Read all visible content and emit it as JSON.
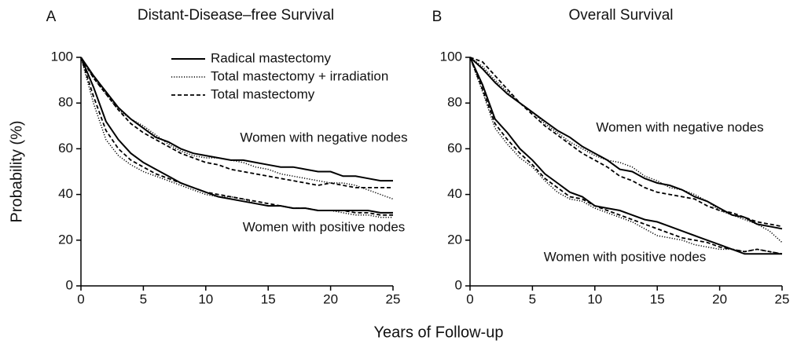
{
  "xlabel": "Years of Follow-up",
  "chart_data": [
    {
      "type": "line",
      "panel": "A",
      "title": "Distant-Disease–free Survival",
      "ylabel": "Probability (%)",
      "xlim": [
        0,
        25
      ],
      "ylim": [
        0,
        100
      ],
      "xticks": [
        0,
        5,
        10,
        15,
        20,
        25
      ],
      "yticks": [
        0,
        20,
        40,
        60,
        80,
        100
      ],
      "legend": [
        {
          "name": "Radical mastectomy",
          "style": "solid"
        },
        {
          "name": "Total mastectomy + irradiation",
          "style": "dotted"
        },
        {
          "name": "Total mastectomy",
          "style": "dashed"
        }
      ],
      "annotations": [
        "Women with negative nodes",
        "Women with positive nodes"
      ],
      "x": [
        0,
        1,
        2,
        3,
        4,
        5,
        6,
        7,
        8,
        9,
        10,
        11,
        12,
        13,
        14,
        15,
        16,
        17,
        18,
        19,
        20,
        21,
        22,
        23,
        24,
        25
      ],
      "series": [
        {
          "style": "solid",
          "color": "#000000",
          "values": [
            100,
            92,
            85,
            78,
            73,
            69,
            65,
            63,
            60,
            58,
            57,
            56,
            55,
            55,
            54,
            53,
            52,
            52,
            51,
            50,
            50,
            48,
            48,
            47,
            46,
            46
          ]
        },
        {
          "style": "dotted",
          "color": "#000000",
          "values": [
            100,
            91,
            84,
            77,
            73,
            70,
            66,
            62,
            59,
            57,
            56,
            56,
            55,
            54,
            52,
            51,
            49,
            48,
            47,
            46,
            45,
            45,
            44,
            42,
            40,
            38
          ]
        },
        {
          "style": "dashed",
          "color": "#000000",
          "values": [
            100,
            91,
            84,
            77,
            71,
            67,
            64,
            61,
            58,
            56,
            54,
            53,
            51,
            50,
            49,
            48,
            47,
            46,
            45,
            44,
            45,
            44,
            43,
            43,
            43,
            43
          ]
        },
        {
          "style": "solid",
          "color": "#000000",
          "values": [
            100,
            87,
            72,
            64,
            58,
            54,
            51,
            48,
            45,
            43,
            41,
            39,
            38,
            37,
            36,
            35,
            35,
            34,
            34,
            33,
            33,
            33,
            33,
            33,
            32,
            32
          ]
        },
        {
          "style": "dotted",
          "color": "#000000",
          "values": [
            100,
            80,
            64,
            57,
            53,
            50,
            48,
            46,
            44,
            42,
            40,
            39,
            39,
            38,
            36,
            35,
            35,
            34,
            34,
            33,
            33,
            32,
            31,
            31,
            30,
            30
          ]
        },
        {
          "style": "dashed",
          "color": "#000000",
          "values": [
            100,
            83,
            68,
            60,
            55,
            52,
            49,
            47,
            45,
            43,
            41,
            40,
            39,
            38,
            37,
            36,
            35,
            34,
            34,
            33,
            33,
            33,
            32,
            32,
            31,
            31
          ]
        }
      ]
    },
    {
      "type": "line",
      "panel": "B",
      "title": "Overall Survival",
      "xlim": [
        0,
        25
      ],
      "ylim": [
        0,
        100
      ],
      "xticks": [
        0,
        5,
        10,
        15,
        20,
        25
      ],
      "yticks": [
        0,
        20,
        40,
        60,
        80,
        100
      ],
      "annotations": [
        "Women with negative nodes",
        "Women with positive nodes"
      ],
      "x": [
        0,
        1,
        2,
        3,
        4,
        5,
        6,
        7,
        8,
        9,
        10,
        11,
        12,
        13,
        14,
        15,
        16,
        17,
        18,
        19,
        20,
        21,
        22,
        23,
        24,
        25
      ],
      "series": [
        {
          "style": "solid",
          "color": "#000000",
          "values": [
            100,
            95,
            89,
            84,
            80,
            76,
            72,
            68,
            65,
            61,
            58,
            55,
            51,
            50,
            47,
            45,
            44,
            42,
            39,
            37,
            34,
            31,
            30,
            27,
            26,
            25
          ]
        },
        {
          "style": "dotted",
          "color": "#000000",
          "values": [
            100,
            96,
            90,
            85,
            80,
            76,
            71,
            67,
            63,
            60,
            57,
            55,
            54,
            52,
            48,
            46,
            43,
            42,
            40,
            37,
            33,
            31,
            29,
            27,
            24,
            19
          ]
        },
        {
          "style": "dashed",
          "color": "#000000",
          "values": [
            100,
            98,
            92,
            86,
            80,
            75,
            70,
            66,
            62,
            58,
            55,
            52,
            48,
            46,
            43,
            41,
            40,
            39,
            38,
            35,
            33,
            32,
            30,
            28,
            27,
            26
          ]
        },
        {
          "style": "solid",
          "color": "#000000",
          "values": [
            100,
            88,
            73,
            67,
            60,
            55,
            49,
            45,
            41,
            39,
            35,
            34,
            33,
            31,
            29,
            28,
            26,
            24,
            22,
            20,
            18,
            16,
            14,
            14,
            14,
            14
          ]
        },
        {
          "style": "dotted",
          "color": "#000000",
          "values": [
            100,
            85,
            69,
            62,
            56,
            52,
            46,
            41,
            38,
            37,
            34,
            32,
            30,
            28,
            25,
            22,
            21,
            20,
            18,
            17,
            16,
            16,
            15,
            16,
            15,
            14
          ]
        },
        {
          "style": "dashed",
          "color": "#000000",
          "values": [
            100,
            86,
            71,
            64,
            58,
            53,
            47,
            43,
            39,
            38,
            35,
            33,
            31,
            29,
            27,
            25,
            23,
            21,
            20,
            19,
            17,
            16,
            15,
            16,
            15,
            14
          ]
        }
      ]
    }
  ]
}
